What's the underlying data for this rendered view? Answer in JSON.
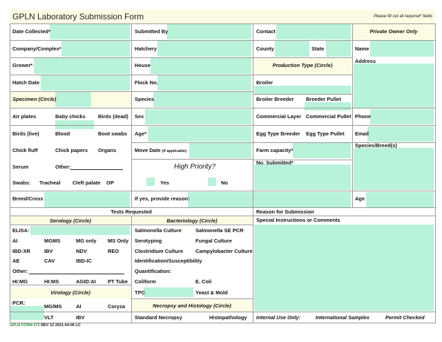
{
  "header": {
    "title": "GPLN Laboratory Submission Form",
    "note": "Please fill out all required* fields"
  },
  "col1": {
    "date_collected": "Date Collected*",
    "company": "Company/Complex*",
    "grower": "Grower*",
    "hatch_date": "Hatch Date",
    "specimen_header": "Specimen (Circle)",
    "specimens": [
      "Air plates",
      "Baby chicks",
      "Birds (dead)",
      "Birds (live)",
      "Blood",
      "Boot swabs",
      "Chick fluff",
      "Chick papers",
      "Organs"
    ],
    "serum": "Serum",
    "other": "Other:",
    "swabs": "Swabs:",
    "swab_types": [
      "Tracheal",
      "Cleft palate",
      "OP"
    ],
    "breed_cross": "Breed/Cross"
  },
  "col2": {
    "submitted_by": "Submitted By",
    "hatchery": "Hatchery",
    "house": "House",
    "flock_no": "Flock No.",
    "species": "Species",
    "sex": "Sex",
    "age": "Age*",
    "move_date": "Move Date",
    "move_date_note": "(if applicable)",
    "high_priority": "High Priority?",
    "yes": "Yes",
    "no": "No",
    "reason": "If yes, provide reason:"
  },
  "col3": {
    "contact": "Contact",
    "county": "County",
    "state": "State",
    "production_type": "Production Type (Circle)",
    "broiler": "Broiler",
    "broiler_breeder": "Broiler Breeder",
    "breeder_pullet": "Breeder Pullet",
    "commercial_layer": "Commercial Layer",
    "commercial_pullet": "Commercial Pullet",
    "egg_type_breeder": "Egg Type Breeder",
    "egg_type_pullet": "Egg Type Pullet",
    "farm_capacity": "Farm capacity*",
    "no_submitted": "No. Submitted*"
  },
  "col4": {
    "private_owner": "Private Owner Only",
    "name": "Name",
    "address": "Address",
    "phone": "Phone",
    "email": "Email",
    "species_breed": "Species/Breed(s)",
    "age": "Age"
  },
  "tests": {
    "header": "Tests Requested",
    "serology_header": "Serology (Circle)",
    "elisa": "ELISA:",
    "serology": [
      [
        "AI",
        "MGMS",
        "MG only",
        "MS Only"
      ],
      [
        "IBD-XR",
        "IBV",
        "NDV",
        "REO"
      ],
      [
        "AE",
        "CAV",
        "IBD-IC",
        ""
      ]
    ],
    "other": "Other:",
    "hi_row": [
      "HI:MG",
      "HI:MS",
      "AGID:AI",
      "PT Tube"
    ],
    "virology_header": "Virology (Circle)",
    "pcr": "PCR:",
    "virology": [
      [
        "MG/MS",
        "AI",
        "Coryza"
      ],
      [
        "VLT",
        "IBV",
        ""
      ]
    ],
    "bacteriology_header": "Bacteriology (Circle)",
    "bacteriology": [
      [
        "Salmonella Culture",
        "Salmonella SE PCR"
      ],
      [
        "Serotyping",
        "Fungal Culture"
      ],
      [
        "Clostridium Culture",
        "Campylobacter Culture"
      ]
    ],
    "identification": "Identification/Susceptibility",
    "quantification": "Quantification:",
    "coliform": "Coliform",
    "ecoli": "E. Coli",
    "tpc": "TPC",
    "yeast_mold": "Yeast & Mold",
    "necropsy_header": "Necropsy and Histology (Circle)",
    "standard_necropsy": "Standard Necropsy",
    "histopathology": "Histopathology"
  },
  "right_bottom": {
    "reason_for_submission": "Reason for Submission",
    "special_instructions": "Special Instructions or Comments",
    "internal_use": "Internal Use Only:",
    "international_samples": "International Samples",
    "permit_checked": "Permit Checked"
  },
  "footer": {
    "form_id": "GPLN FORM 072",
    "revision": "REV 12 2021-04-06  LC"
  }
}
